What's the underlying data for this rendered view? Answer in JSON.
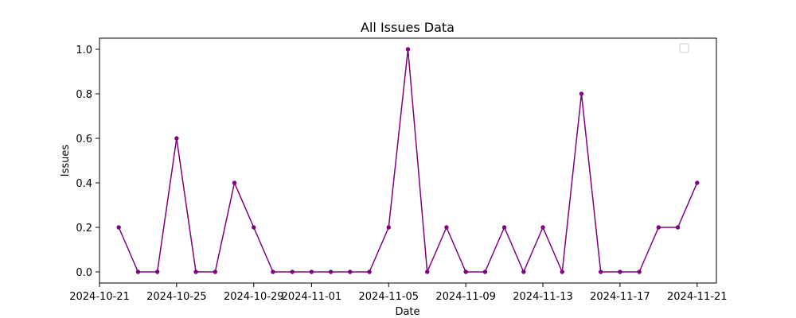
{
  "chart_data": {
    "type": "line",
    "title": "All Issues Data",
    "xlabel": "Date",
    "ylabel": "Issues",
    "x_range": [
      "2024-10-21",
      "2024-11-22"
    ],
    "ylim": [
      -0.05,
      1.05
    ],
    "grid": false,
    "legend": {
      "placement": "top-right",
      "entries": []
    },
    "x_ticks": [
      "2024-10-21",
      "2024-10-25",
      "2024-10-29",
      "2024-11-01",
      "2024-11-05",
      "2024-11-09",
      "2024-11-13",
      "2024-11-17",
      "2024-11-21"
    ],
    "y_ticks": [
      "0.0",
      "0.2",
      "0.4",
      "0.6",
      "0.8",
      "1.0"
    ],
    "series": [
      {
        "color": "#800080",
        "marker": "circle",
        "x": [
          "2024-10-22",
          "2024-10-23",
          "2024-10-24",
          "2024-10-25",
          "2024-10-26",
          "2024-10-27",
          "2024-10-28",
          "2024-10-29",
          "2024-10-30",
          "2024-10-31",
          "2024-11-01",
          "2024-11-02",
          "2024-11-03",
          "2024-11-04",
          "2024-11-05",
          "2024-11-06",
          "2024-11-07",
          "2024-11-08",
          "2024-11-09",
          "2024-11-10",
          "2024-11-11",
          "2024-11-12",
          "2024-11-13",
          "2024-11-14",
          "2024-11-15",
          "2024-11-16",
          "2024-11-17",
          "2024-11-18",
          "2024-11-19",
          "2024-11-20",
          "2024-11-21"
        ],
        "values": [
          0.2,
          0,
          0,
          0.6,
          0,
          0,
          0.4,
          0.2,
          0,
          0,
          0,
          0,
          0,
          0,
          0.2,
          1.0,
          0,
          0.2,
          0,
          0,
          0.2,
          0,
          0.2,
          0,
          0.8,
          0,
          0,
          0,
          0.2,
          0.2,
          0.4
        ]
      }
    ]
  }
}
